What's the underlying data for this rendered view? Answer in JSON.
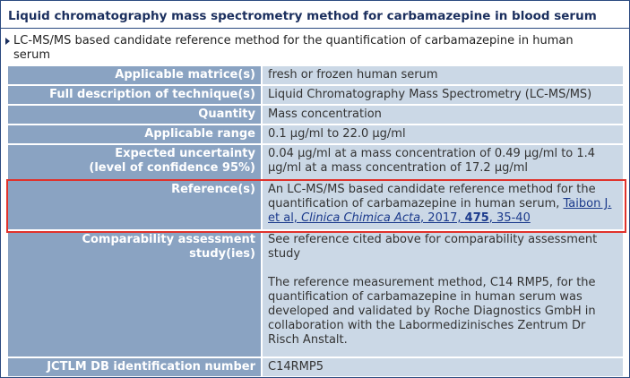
{
  "header": {
    "title": "Liquid chromatography mass spectrometry method for carbamazepine in blood serum",
    "subtitle": "LC-MS/MS based candidate reference method for the quantification of carbamazepine in human serum"
  },
  "table": {
    "rows": [
      {
        "label": [
          "Applicable matrice(s)"
        ],
        "value": "fresh or frozen human serum"
      },
      {
        "label": [
          "Full description of technique(s)"
        ],
        "value": "Liquid Chromatography Mass Spectrometry (LC-MS/MS)"
      },
      {
        "label": [
          "Quantity"
        ],
        "value": "Mass concentration"
      },
      {
        "label": [
          "Applicable range"
        ],
        "value": "0.1 µg/ml to 22.0 µg/ml"
      },
      {
        "label": [
          "Expected uncertainty",
          "(level of confidence 95%)"
        ],
        "value": "0.04 µg/ml at a mass concentration of 0.49 µg/ml to 1.4 µg/ml at a mass concentration of 17.2 µg/ml"
      },
      {
        "label": [
          "Reference(s)"
        ],
        "value": "An LC-MS/MS based candidate reference method for the quantification of carbamazepine in human serum, ",
        "citation": {
          "authors": "Taibon J. et al, ",
          "journal": "Clinica Chimica Acta",
          "year": ", 2017, ",
          "volume": "475",
          "pages": ", 35-40"
        }
      },
      {
        "label": [
          "Comparability assessment",
          "study(ies)"
        ],
        "paragraphs": [
          "See reference cited above for comparability assessment study",
          "The reference measurement method, C14 RMP5, for the quantification of carbamazepine in human serum was developed and validated by Roche Diagnostics GmbH in collaboration with the Labormedizinisches Zentrum Dr Risch Anstalt."
        ]
      },
      {
        "label": [
          "JCTLM DB identification number"
        ],
        "value": "C14RMP5"
      }
    ]
  }
}
